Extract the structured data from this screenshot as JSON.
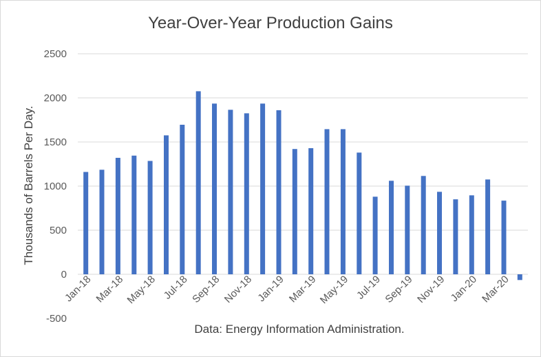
{
  "chart_data": {
    "type": "bar",
    "title": "Year-Over-Year Production Gains",
    "xlabel": "Data: Energy Information Administration.",
    "ylabel": "Thousands of Barrels Per Day.",
    "ylim": [
      -500,
      2500
    ],
    "yticks": [
      2500,
      2000,
      1500,
      1000,
      500,
      0,
      -500
    ],
    "grid": true,
    "bar_color": "#4472c4",
    "categories": [
      "Jan-18",
      "Feb-18",
      "Mar-18",
      "Apr-18",
      "May-18",
      "Jun-18",
      "Jul-18",
      "Aug-18",
      "Sep-18",
      "Oct-18",
      "Nov-18",
      "Dec-18",
      "Jan-19",
      "Feb-19",
      "Mar-19",
      "Apr-19",
      "May-19",
      "Jun-19",
      "Jul-19",
      "Aug-19",
      "Sep-19",
      "Oct-19",
      "Nov-19",
      "Dec-19",
      "Jan-20",
      "Feb-20",
      "Mar-20",
      "Apr-20"
    ],
    "tick_labels": [
      "Jan-18",
      "",
      "Mar-18",
      "",
      "May-18",
      "",
      "Jul-18",
      "",
      "Sep-18",
      "",
      "Nov-18",
      "",
      "Jan-19",
      "",
      "Mar-19",
      "",
      "May-19",
      "",
      "Jul-19",
      "",
      "Sep-19",
      "",
      "Nov-19",
      "",
      "Jan-20",
      "",
      "Mar-20",
      ""
    ],
    "values": [
      1160,
      1185,
      1320,
      1345,
      1285,
      1575,
      1695,
      2075,
      1935,
      1865,
      1825,
      1935,
      1860,
      1420,
      1430,
      1645,
      1645,
      1380,
      880,
      1060,
      1005,
      1115,
      935,
      850,
      895,
      1075,
      835,
      -65
    ]
  }
}
